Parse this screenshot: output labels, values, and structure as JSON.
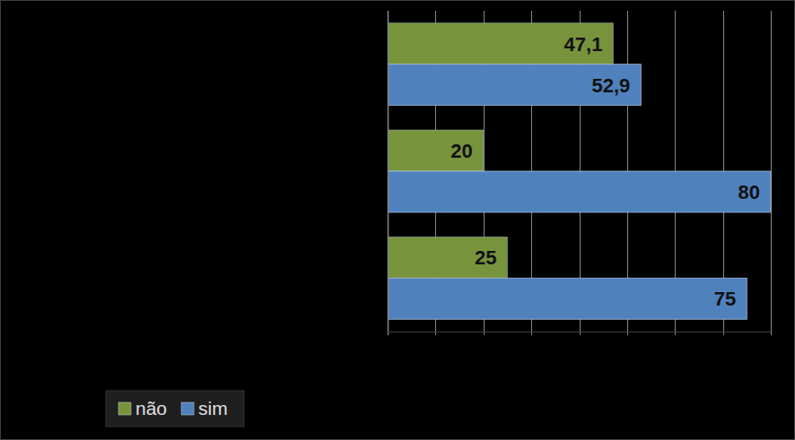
{
  "chart_data": {
    "type": "bar",
    "orientation": "horizontal",
    "categories": [
      null,
      null,
      null
    ],
    "series": [
      {
        "name": "não",
        "color": "#77933c",
        "values": [
          47.1,
          20,
          25
        ],
        "value_labels": [
          "47,1",
          "20",
          "25"
        ]
      },
      {
        "name": "sim",
        "color": "#4f81bd",
        "values": [
          52.9,
          80,
          75
        ],
        "value_labels": [
          "52,9",
          "80",
          "75"
        ]
      }
    ],
    "xlim": [
      0,
      80
    ],
    "xticks": [
      0,
      10,
      20,
      30,
      40,
      50,
      60,
      70,
      80
    ],
    "grid": true,
    "tick_labels": false,
    "data_labels": true,
    "legend": "bottom-left"
  }
}
